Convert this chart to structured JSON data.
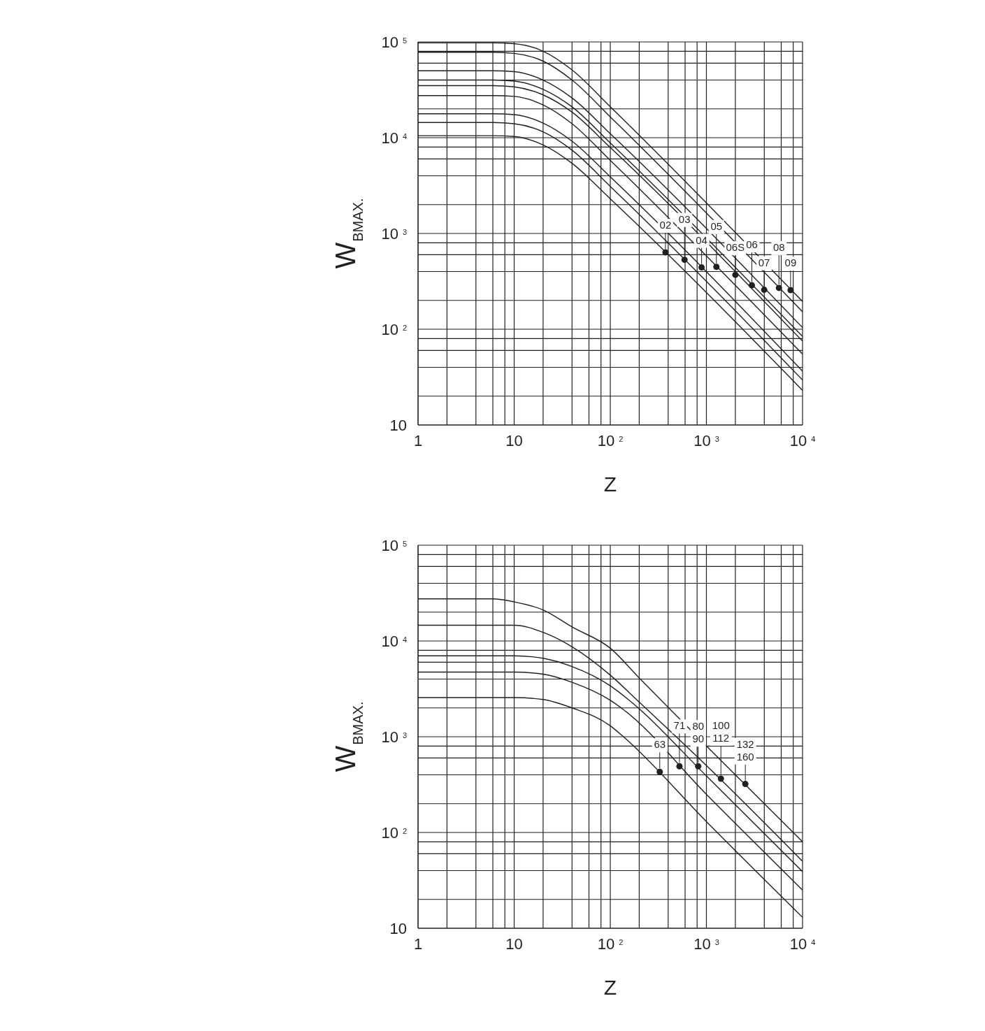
{
  "chart_data": [
    {
      "type": "line",
      "xlabel": "Z",
      "ylabel": "W$_{BMAX.}$",
      "log": "xy",
      "grid": true,
      "line_style": "solid",
      "xlim": [
        1,
        10000
      ],
      "ylim": [
        10,
        100000
      ],
      "xticks": [
        {
          "value": 1,
          "label": "1"
        },
        {
          "value": 2,
          "label": null
        },
        {
          "value": 4,
          "label": null
        },
        {
          "value": 6,
          "label": null
        },
        {
          "value": 8,
          "label": null
        },
        {
          "value": 10,
          "label": "10"
        },
        {
          "value": 20,
          "label": null
        },
        {
          "value": 40,
          "label": null
        },
        {
          "value": 60,
          "label": null
        },
        {
          "value": 80,
          "label": null
        },
        {
          "value": 100,
          "label": "10$^{2}$"
        },
        {
          "value": 200,
          "label": null
        },
        {
          "value": 400,
          "label": null
        },
        {
          "value": 600,
          "label": null
        },
        {
          "value": 800,
          "label": null
        },
        {
          "value": 1000,
          "label": "10$^{3}$"
        },
        {
          "value": 2000,
          "label": null
        },
        {
          "value": 4000,
          "label": null
        },
        {
          "value": 6000,
          "label": null
        },
        {
          "value": 8000,
          "label": null
        },
        {
          "value": 10000,
          "label": "10$^{4}$"
        }
      ],
      "yticks": [
        {
          "value": 10,
          "label": "10"
        },
        {
          "value": 20,
          "label": null
        },
        {
          "value": 40,
          "label": null
        },
        {
          "value": 60,
          "label": null
        },
        {
          "value": 80,
          "label": null
        },
        {
          "value": 100,
          "label": "10$^{2}$"
        },
        {
          "value": 200,
          "label": null
        },
        {
          "value": 400,
          "label": null
        },
        {
          "value": 600,
          "label": null
        },
        {
          "value": 800,
          "label": null
        },
        {
          "value": 1000,
          "label": "10$^{3}$"
        },
        {
          "value": 2000,
          "label": null
        },
        {
          "value": 4000,
          "label": null
        },
        {
          "value": 6000,
          "label": null
        },
        {
          "value": 8000,
          "label": null
        },
        {
          "value": 10000,
          "label": "10$^{4}$"
        },
        {
          "value": 20000,
          "label": null
        },
        {
          "value": 40000,
          "label": null
        },
        {
          "value": 60000,
          "label": null
        },
        {
          "value": 80000,
          "label": null
        },
        {
          "value": 100000,
          "label": "10$^{5}$"
        }
      ],
      "series": [
        {
          "color": "#231f20",
          "x": [
            1,
            6,
            10,
            20,
            40,
            100,
            10000
          ],
          "values": [
            98000,
            98000,
            96000,
            80000,
            51000,
            21000,
            195
          ]
        },
        {
          "color": "#231f20",
          "x": [
            1,
            6,
            10,
            20,
            40,
            100,
            10000
          ],
          "values": [
            78000,
            78000,
            76000,
            63000,
            40000,
            16500,
            152
          ]
        },
        {
          "color": "#231f20",
          "x": [
            1,
            6,
            10,
            20,
            40,
            100,
            10000
          ],
          "values": [
            50000,
            50000,
            49000,
            40000,
            26000,
            11000,
            104
          ]
        },
        {
          "color": "#231f20",
          "x": [
            1,
            6,
            10,
            20,
            40,
            100,
            10000
          ],
          "values": [
            40000,
            40000,
            39000,
            32000,
            21000,
            8800,
            84
          ]
        },
        {
          "color": "#231f20",
          "x": [
            1,
            6,
            10,
            20,
            40,
            100,
            10000
          ],
          "values": [
            35000,
            35000,
            34000,
            28000,
            18500,
            7900,
            75
          ]
        },
        {
          "color": "#231f20",
          "x": [
            1,
            6,
            10,
            20,
            40,
            100,
            10000
          ],
          "values": [
            27500,
            27500,
            27000,
            22000,
            14000,
            5800,
            55
          ]
        },
        {
          "color": "#231f20",
          "x": [
            1,
            6,
            10,
            20,
            40,
            100,
            10000
          ],
          "values": [
            17800,
            17800,
            17400,
            14200,
            9200,
            3900,
            36.5
          ]
        },
        {
          "color": "#231f20",
          "x": [
            1,
            6,
            10,
            20,
            40,
            100,
            10000
          ],
          "values": [
            14400,
            14400,
            14000,
            11500,
            7400,
            3100,
            29.5
          ]
        },
        {
          "color": "#231f20",
          "x": [
            1,
            6,
            10,
            20,
            40,
            100,
            10000
          ],
          "values": [
            10500,
            10500,
            10300,
            8400,
            5400,
            2300,
            23
          ]
        },
        {
          "type": "scatter",
          "marker": "circle",
          "color": "#231f20",
          "x": [
            375,
            592,
            891,
            1270,
            2000,
            2970,
            3990,
            5680,
            7510
          ],
          "values": [
            634,
            531,
            442,
            448,
            370,
            288,
            258,
            270,
            256
          ]
        }
      ],
      "annotations": [
        {
          "text": "02",
          "x": 375,
          "y": 634
        },
        {
          "text": "03",
          "x": 592,
          "y": 531
        },
        {
          "text": "04",
          "x": 891,
          "y": 442
        },
        {
          "text": "05",
          "x": 1270,
          "y": 448
        },
        {
          "text": "06S",
          "x": 2000,
          "y": 370
        },
        {
          "text": "06",
          "x": 2970,
          "y": 288
        },
        {
          "text": "07",
          "x": 3990,
          "y": 258
        },
        {
          "text": "08",
          "x": 5680,
          "y": 270
        },
        {
          "text": "09",
          "x": 7510,
          "y": 256
        }
      ]
    },
    {
      "type": "line",
      "xlabel": "Z",
      "ylabel": "W$_{BMAX.}$",
      "log": "xy",
      "grid": true,
      "line_style": "solid",
      "xlim": [
        1,
        10000
      ],
      "ylim": [
        10,
        100000
      ],
      "xticks": [
        {
          "value": 1,
          "label": "1"
        },
        {
          "value": 2,
          "label": null
        },
        {
          "value": 4,
          "label": null
        },
        {
          "value": 6,
          "label": null
        },
        {
          "value": 8,
          "label": null
        },
        {
          "value": 10,
          "label": "10"
        },
        {
          "value": 20,
          "label": null
        },
        {
          "value": 40,
          "label": null
        },
        {
          "value": 60,
          "label": null
        },
        {
          "value": 80,
          "label": null
        },
        {
          "value": 100,
          "label": "10$^{2}$"
        },
        {
          "value": 200,
          "label": null
        },
        {
          "value": 400,
          "label": null
        },
        {
          "value": 600,
          "label": null
        },
        {
          "value": 800,
          "label": null
        },
        {
          "value": 1000,
          "label": "10$^{3}$"
        },
        {
          "value": 2000,
          "label": null
        },
        {
          "value": 4000,
          "label": null
        },
        {
          "value": 6000,
          "label": null
        },
        {
          "value": 8000,
          "label": null
        },
        {
          "value": 10000,
          "label": "10$^{4}$"
        }
      ],
      "yticks": [
        {
          "value": 10,
          "label": "10"
        },
        {
          "value": 20,
          "label": null
        },
        {
          "value": 40,
          "label": null
        },
        {
          "value": 60,
          "label": null
        },
        {
          "value": 80,
          "label": null
        },
        {
          "value": 100,
          "label": "10$^{2}$"
        },
        {
          "value": 200,
          "label": null
        },
        {
          "value": 400,
          "label": null
        },
        {
          "value": 600,
          "label": null
        },
        {
          "value": 800,
          "label": null
        },
        {
          "value": 1000,
          "label": "10$^{3}$"
        },
        {
          "value": 2000,
          "label": null
        },
        {
          "value": 4000,
          "label": null
        },
        {
          "value": 6000,
          "label": null
        },
        {
          "value": 8000,
          "label": null
        },
        {
          "value": 10000,
          "label": "10$^{4}$"
        },
        {
          "value": 20000,
          "label": null
        },
        {
          "value": 40000,
          "label": null
        },
        {
          "value": 60000,
          "label": null
        },
        {
          "value": 80000,
          "label": null
        },
        {
          "value": 100000,
          "label": "10$^{5}$"
        }
      ],
      "series": [
        {
          "color": "#231f20",
          "x": [
            1,
            6,
            10,
            20,
            40,
            100,
            200,
            1000,
            10000
          ],
          "values": [
            27500,
            27500,
            25600,
            21100,
            14000,
            8400,
            4100,
            800,
            80
          ]
        },
        {
          "color": "#231f20",
          "x": [
            1,
            10,
            20,
            40,
            100,
            200,
            1000,
            10000
          ],
          "values": [
            14600,
            14600,
            12300,
            8700,
            4400,
            2300,
            500,
            50
          ]
        },
        {
          "color": "#231f20",
          "x": [
            1,
            10,
            20,
            40,
            100,
            150,
            1000,
            10000
          ],
          "values": [
            7000,
            7000,
            6600,
            5400,
            3400,
            2500,
            390,
            39
          ]
        },
        {
          "color": "#231f20",
          "x": [
            1,
            10,
            20,
            40,
            100,
            137,
            1000,
            10000
          ],
          "values": [
            4730,
            4730,
            4500,
            3700,
            2400,
            1920,
            250,
            25
          ]
        },
        {
          "color": "#231f20",
          "x": [
            1,
            10,
            20,
            40,
            100,
            137,
            1000,
            10000
          ],
          "values": [
            2560,
            2560,
            2450,
            2000,
            1300,
            1000,
            130,
            13
          ]
        },
        {
          "type": "scatter",
          "marker": "circle",
          "color": "#231f20",
          "x": [
            327,
            524,
            821,
            1415,
            2540
          ],
          "values": [
            430,
            492,
            492,
            365,
            321
          ]
        }
      ],
      "annotations": [
        {
          "text": "63",
          "x": 327,
          "y": 430
        },
        {
          "text": "71",
          "x": 524,
          "y": 492
        },
        {
          "text": "80\n90",
          "x": 821,
          "y": 492
        },
        {
          "text": "100\n112",
          "x": 1415,
          "y": 365
        },
        {
          "text": "132\n160",
          "x": 2540,
          "y": 321
        }
      ]
    }
  ]
}
